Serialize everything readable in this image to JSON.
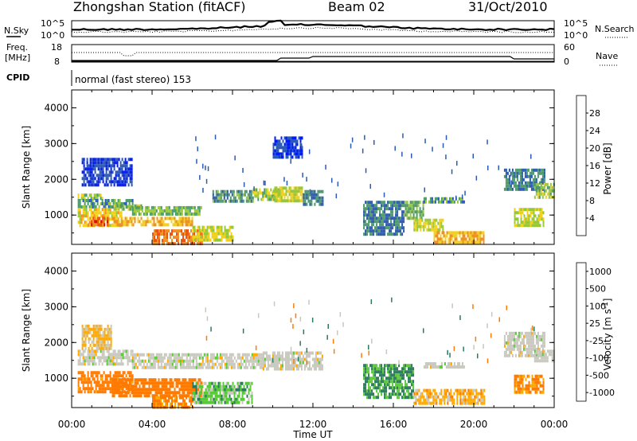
{
  "header": {
    "station": "Zhongshan Station (fitACF)",
    "beam": "Beam 02",
    "date": "31/Oct/2010"
  },
  "noise_panel": {
    "left_label": "N.Sky",
    "right_label": "N.Search",
    "left_ticks": [
      "10^5",
      "10^0"
    ],
    "right_ticks": [
      "10^5",
      "10^0"
    ]
  },
  "freq_panel": {
    "left_label_line1": "Freq.",
    "left_label_line2": "[MHz]",
    "right_label": "Nave",
    "left_ticks": [
      "18",
      "8"
    ],
    "right_ticks": [
      "60",
      "0"
    ]
  },
  "cpid": {
    "label": "CPID",
    "text": "normal (fast stereo) 153"
  },
  "colors": {
    "power": [
      "#0018ff",
      "#2a5ab4",
      "#4a9a6a",
      "#98c83a",
      "#f0d020",
      "#f09020",
      "#f05010",
      "#e00000"
    ],
    "velocity": [
      "#ff0000",
      "#ff7a00",
      "#ffa800",
      "#c8c8be",
      "#5ac83a",
      "#2a7a5a",
      "#1e44c0"
    ],
    "velocity_neutral": "#c8c8be"
  },
  "chart_data": [
    {
      "type": "heatmap",
      "name_of_quantity": "Power",
      "xlabel": "",
      "ylabel": "Slant Range [km]",
      "x_ticks": [
        "00:00",
        "04:00",
        "08:00",
        "12:00",
        "16:00",
        "20:00",
        "00:00"
      ],
      "y_ticks": [
        1000,
        2000,
        3000,
        4000
      ],
      "xlim_hours": [
        0,
        24
      ],
      "ylim_km": [
        180,
        4500
      ],
      "colorbar_label": "Power [dB]",
      "colorbar_ticks": [
        4,
        8,
        12,
        16,
        20,
        24,
        28
      ],
      "colorbar_range": [
        0,
        32
      ],
      "regions": [
        {
          "t": [
            0.3,
            1.5
          ],
          "r": [
            1450,
            1600
          ],
          "level": 14
        },
        {
          "t": [
            0.3,
            3.0
          ],
          "r": [
            1200,
            1450
          ],
          "level": 10
        },
        {
          "t": [
            0.3,
            2.5
          ],
          "r": [
            700,
            1200
          ],
          "level": 18
        },
        {
          "t": [
            0.8,
            1.8
          ],
          "r": [
            700,
            950
          ],
          "level": 26
        },
        {
          "t": [
            2.0,
            3.5
          ],
          "r": [
            1150,
            1300
          ],
          "level": 14
        },
        {
          "t": [
            3.0,
            6.5
          ],
          "r": [
            1050,
            1250
          ],
          "level": 12
        },
        {
          "t": [
            2.0,
            6.0
          ],
          "r": [
            700,
            950
          ],
          "level": 20
        },
        {
          "t": [
            4.0,
            6.5
          ],
          "r": [
            200,
            600
          ],
          "level": 24
        },
        {
          "t": [
            6.0,
            8.0
          ],
          "r": [
            300,
            700
          ],
          "level": 16
        },
        {
          "t": [
            7.0,
            9.0
          ],
          "r": [
            1350,
            1700
          ],
          "level": 10
        },
        {
          "t": [
            9.0,
            10.5
          ],
          "r": [
            1450,
            1750
          ],
          "level": 14
        },
        {
          "t": [
            10.0,
            11.5
          ],
          "r": [
            1400,
            1800
          ],
          "level": 16
        },
        {
          "t": [
            11.5,
            12.5
          ],
          "r": [
            1300,
            1700
          ],
          "level": 8
        },
        {
          "t": [
            14.5,
            16.5
          ],
          "r": [
            500,
            1400
          ],
          "level": 8
        },
        {
          "t": [
            16.5,
            17.5
          ],
          "r": [
            900,
            1400
          ],
          "level": 12
        },
        {
          "t": [
            17.0,
            18.5
          ],
          "r": [
            600,
            900
          ],
          "level": 16
        },
        {
          "t": [
            17.5,
            19.5
          ],
          "r": [
            1350,
            1500
          ],
          "level": 10
        },
        {
          "t": [
            18.0,
            20.5
          ],
          "r": [
            250,
            550
          ],
          "level": 20
        },
        {
          "t": [
            22.0,
            23.5
          ],
          "r": [
            700,
            1200
          ],
          "level": 16
        },
        {
          "t": [
            21.5,
            23.5
          ],
          "r": [
            1700,
            2300
          ],
          "level": 8
        },
        {
          "t": [
            23.0,
            24.0
          ],
          "r": [
            1500,
            1900
          ],
          "level": 14
        },
        {
          "t": [
            0.5,
            3.0
          ],
          "r": [
            1800,
            2600
          ],
          "level": 4
        },
        {
          "t": [
            10.0,
            11.5
          ],
          "r": [
            2600,
            3200
          ],
          "level": 4
        }
      ]
    },
    {
      "type": "heatmap",
      "name_of_quantity": "Velocity",
      "xlabel": "Time UT",
      "ylabel": "Slant Range [km]",
      "x_ticks": [
        "00:00",
        "04:00",
        "08:00",
        "12:00",
        "16:00",
        "20:00",
        "00:00"
      ],
      "y_ticks": [
        1000,
        2000,
        3000,
        4000
      ],
      "xlim_hours": [
        0,
        24
      ],
      "ylim_km": [
        180,
        4500
      ],
      "colorbar_label": "Velocity [m s^-1]",
      "colorbar_ticks": [
        "-1000",
        "-500",
        "-100",
        "-25",
        "25",
        "100",
        "500",
        "1000"
      ],
      "regions": [
        {
          "t": [
            0.3,
            3.0
          ],
          "r": [
            1400,
            1800
          ],
          "level": 0
        },
        {
          "t": [
            3.0,
            9.5
          ],
          "r": [
            1300,
            1700
          ],
          "level": 0
        },
        {
          "t": [
            9.5,
            12.5
          ],
          "r": [
            1300,
            1750
          ],
          "level": 0
        },
        {
          "t": [
            0.3,
            3.0
          ],
          "r": [
            600,
            1200
          ],
          "level": -200
        },
        {
          "t": [
            2.0,
            6.5
          ],
          "r": [
            500,
            1000
          ],
          "level": -300
        },
        {
          "t": [
            4.0,
            6.0
          ],
          "r": [
            200,
            500
          ],
          "level": -150
        },
        {
          "t": [
            6.0,
            9.0
          ],
          "r": [
            300,
            900
          ],
          "level": 60
        },
        {
          "t": [
            14.5,
            17.0
          ],
          "r": [
            500,
            1400
          ],
          "level": 120
        },
        {
          "t": [
            17.0,
            20.5
          ],
          "r": [
            300,
            700
          ],
          "level": -60
        },
        {
          "t": [
            17.5,
            19.5
          ],
          "r": [
            1300,
            1450
          ],
          "level": 0
        },
        {
          "t": [
            21.5,
            23.5
          ],
          "r": [
            1600,
            2300
          ],
          "level": 0
        },
        {
          "t": [
            23.0,
            24.0
          ],
          "r": [
            1500,
            1800
          ],
          "level": 0
        },
        {
          "t": [
            22.0,
            23.5
          ],
          "r": [
            600,
            1100
          ],
          "level": -120
        },
        {
          "t": [
            0.5,
            2.0
          ],
          "r": [
            1800,
            2500
          ],
          "level": -40
        }
      ]
    }
  ]
}
